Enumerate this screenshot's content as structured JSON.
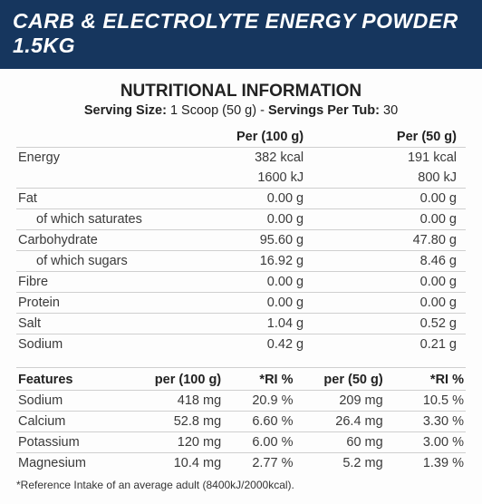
{
  "header": {
    "title": "CARB & ELECTROLYTE ENERGY POWDER 1.5KG"
  },
  "info": {
    "section_title": "NUTRITIONAL INFORMATION",
    "serving_size_label": "Serving Size:",
    "serving_size_value": "1 Scoop (50 g)",
    "separator": " - ",
    "servings_per_tub_label": "Servings Per Tub:",
    "servings_per_tub_value": "30"
  },
  "nutri": {
    "col_per100": "Per (100 g)",
    "col_per50": "Per (50 g)",
    "rows": [
      {
        "label": "Energy",
        "per100": "382 kcal",
        "per50": "191 kcal",
        "sub": false,
        "border": false
      },
      {
        "label": "",
        "per100": "1600 kJ",
        "per50": "800 kJ",
        "sub": false,
        "border": true
      },
      {
        "label": "Fat",
        "per100": "0.00 g",
        "per50": "0.00 g",
        "sub": false,
        "border": true
      },
      {
        "label": "of which saturates",
        "per100": "0.00 g",
        "per50": "0.00 g",
        "sub": true,
        "border": true
      },
      {
        "label": "Carbohydrate",
        "per100": "95.60 g",
        "per50": "47.80 g",
        "sub": false,
        "border": true
      },
      {
        "label": "of which sugars",
        "per100": "16.92 g",
        "per50": "8.46 g",
        "sub": true,
        "border": true
      },
      {
        "label": "Fibre",
        "per100": "0.00 g",
        "per50": "0.00 g",
        "sub": false,
        "border": true
      },
      {
        "label": "Protein",
        "per100": "0.00 g",
        "per50": "0.00 g",
        "sub": false,
        "border": true
      },
      {
        "label": "Salt",
        "per100": "1.04 g",
        "per50": "0.52 g",
        "sub": false,
        "border": true
      },
      {
        "label": "Sodium",
        "per100": "0.42 g",
        "per50": "0.21 g",
        "sub": false,
        "border": true
      }
    ]
  },
  "features": {
    "col_label": "Features",
    "col_per100": "per (100 g)",
    "col_ri1": "*RI %",
    "col_per50": "per (50 g)",
    "col_ri2": "*RI %",
    "rows": [
      {
        "label": "Sodium",
        "per100": "418 mg",
        "ri1": "20.9 %",
        "per50": "209 mg",
        "ri2": "10.5 %"
      },
      {
        "label": "Calcium",
        "per100": "52.8 mg",
        "ri1": "6.60 %",
        "per50": "26.4 mg",
        "ri2": "3.30 %"
      },
      {
        "label": "Potassium",
        "per100": "120 mg",
        "ri1": "6.00 %",
        "per50": "60 mg",
        "ri2": "3.00 %"
      },
      {
        "label": "Magnesium",
        "per100": "10.4 mg",
        "ri1": "2.77 %",
        "per50": "5.2 mg",
        "ri2": "1.39 %"
      }
    ]
  },
  "footnote": "*Reference Intake of an average adult (8400kJ/2000kcal)."
}
